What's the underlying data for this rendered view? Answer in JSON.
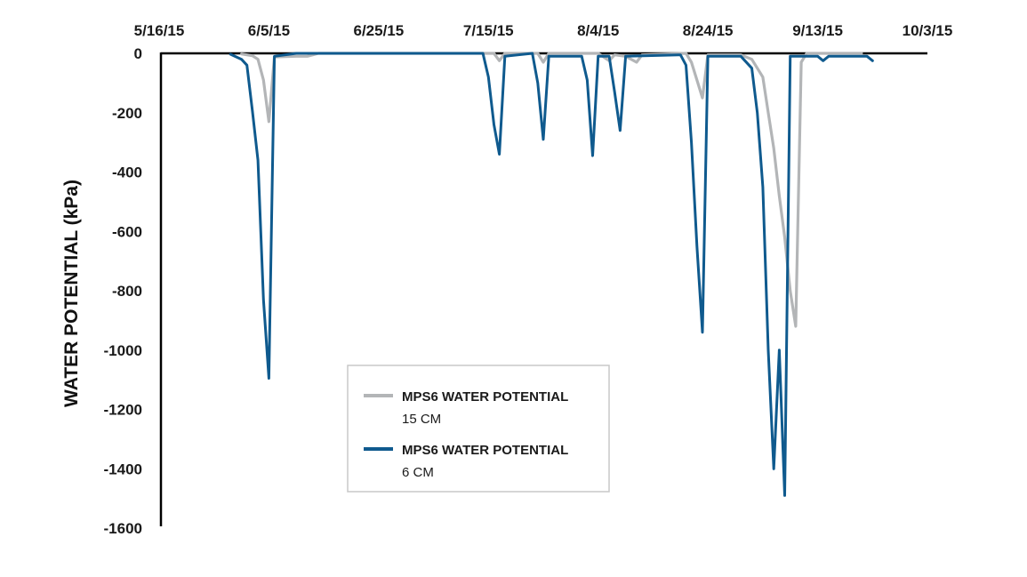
{
  "chart_data": {
    "type": "line",
    "title": "",
    "xlabel": "",
    "ylabel": "WATER POTENTIAL (kPa)",
    "x_ticks": [
      "5/16/15",
      "6/5/15",
      "6/25/15",
      "7/15/15",
      "8/4/15",
      "8/24/15",
      "9/13/15",
      "10/3/15"
    ],
    "x_range": [
      "2015-05-16",
      "2015-10-03"
    ],
    "ylim": [
      -1600,
      0
    ],
    "y_ticks": [
      0,
      -200,
      -400,
      -600,
      -800,
      -1000,
      -1200,
      -1400,
      -1600
    ],
    "grid": false,
    "legend_position": "bottom-center",
    "series": [
      {
        "name": "MPS6 WATER POTENTIAL 15 CM",
        "legend_line1": "MPS6 WATER POTENTIAL",
        "legend_line2": "15 CM",
        "color": "#b3b5b7",
        "points": [
          [
            "2015-05-31",
            -2
          ],
          [
            "2015-06-01",
            -5
          ],
          [
            "2015-06-02",
            -8
          ],
          [
            "2015-06-03",
            -20
          ],
          [
            "2015-06-04",
            -90
          ],
          [
            "2015-06-05",
            -230
          ],
          [
            "2015-06-06",
            -12
          ],
          [
            "2015-06-10",
            -10
          ],
          [
            "2015-06-12",
            -10
          ],
          [
            "2015-06-13",
            -5
          ],
          [
            "2015-06-14",
            0
          ],
          [
            "2015-07-16",
            0
          ],
          [
            "2015-07-17",
            -25
          ],
          [
            "2015-07-18",
            0
          ],
          [
            "2015-07-24",
            0
          ],
          [
            "2015-07-25",
            -30
          ],
          [
            "2015-07-26",
            0
          ],
          [
            "2015-08-04",
            0
          ],
          [
            "2015-08-06",
            -25
          ],
          [
            "2015-08-07",
            -5
          ],
          [
            "2015-08-09",
            -10
          ],
          [
            "2015-08-11",
            -30
          ],
          [
            "2015-08-12",
            -5
          ],
          [
            "2015-08-20",
            0
          ],
          [
            "2015-08-21",
            -30
          ],
          [
            "2015-08-22",
            -90
          ],
          [
            "2015-08-23",
            -150
          ],
          [
            "2015-08-24",
            -5
          ],
          [
            "2015-08-30",
            -5
          ],
          [
            "2015-09-01",
            -20
          ],
          [
            "2015-09-03",
            -80
          ],
          [
            "2015-09-04",
            -200
          ],
          [
            "2015-09-05",
            -320
          ],
          [
            "2015-09-06",
            -480
          ],
          [
            "2015-09-07",
            -620
          ],
          [
            "2015-09-08",
            -800
          ],
          [
            "2015-09-09",
            -920
          ],
          [
            "2015-09-10",
            -30
          ],
          [
            "2015-09-11",
            0
          ],
          [
            "2015-09-21",
            0
          ]
        ]
      },
      {
        "name": "MPS6 WATER POTENTIAL 6 CM",
        "legend_line1": "MPS6 WATER POTENTIAL",
        "legend_line2": "6 CM",
        "color": "#0f5a8e",
        "points": [
          [
            "2015-05-29",
            -3
          ],
          [
            "2015-05-31",
            -20
          ],
          [
            "2015-06-01",
            -40
          ],
          [
            "2015-06-02",
            -195
          ],
          [
            "2015-06-03",
            -360
          ],
          [
            "2015-06-04",
            -830
          ],
          [
            "2015-06-05",
            -1095
          ],
          [
            "2015-06-06",
            -10
          ],
          [
            "2015-06-10",
            0
          ],
          [
            "2015-07-14",
            0
          ],
          [
            "2015-07-15",
            -80
          ],
          [
            "2015-07-16",
            -240
          ],
          [
            "2015-07-17",
            -340
          ],
          [
            "2015-07-18",
            -10
          ],
          [
            "2015-07-23",
            0
          ],
          [
            "2015-07-24",
            -100
          ],
          [
            "2015-07-25",
            -290
          ],
          [
            "2015-07-26",
            -10
          ],
          [
            "2015-08-01",
            -10
          ],
          [
            "2015-08-02",
            -90
          ],
          [
            "2015-08-03",
            -345
          ],
          [
            "2015-08-04",
            -10
          ],
          [
            "2015-08-06",
            -10
          ],
          [
            "2015-08-07",
            -130
          ],
          [
            "2015-08-08",
            -260
          ],
          [
            "2015-08-09",
            -10
          ],
          [
            "2015-08-19",
            -5
          ],
          [
            "2015-08-20",
            -40
          ],
          [
            "2015-08-21",
            -300
          ],
          [
            "2015-08-22",
            -650
          ],
          [
            "2015-08-23",
            -940
          ],
          [
            "2015-08-24",
            -10
          ],
          [
            "2015-08-30",
            -10
          ],
          [
            "2015-09-01",
            -50
          ],
          [
            "2015-09-02",
            -200
          ],
          [
            "2015-09-03",
            -450
          ],
          [
            "2015-09-04",
            -1000
          ],
          [
            "2015-09-05",
            -1400
          ],
          [
            "2015-09-06",
            -1000
          ],
          [
            "2015-09-07",
            -1490
          ],
          [
            "2015-09-08",
            -10
          ],
          [
            "2015-09-13",
            -10
          ],
          [
            "2015-09-14",
            -25
          ],
          [
            "2015-09-15",
            -10
          ],
          [
            "2015-09-22",
            -10
          ],
          [
            "2015-09-23",
            -25
          ]
        ]
      }
    ]
  }
}
